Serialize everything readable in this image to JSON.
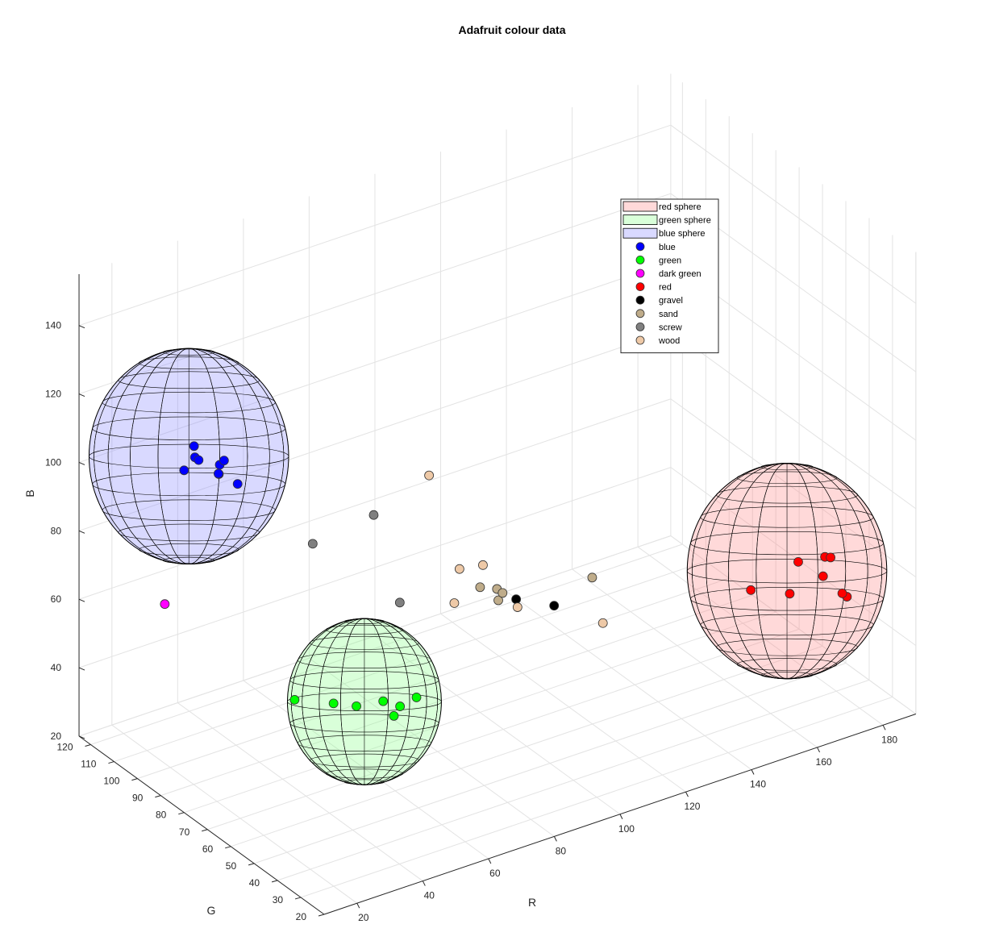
{
  "chart_data": {
    "type": "scatter",
    "subtype": "3d-scatter-with-spheres",
    "title": "Adafruit colour data",
    "xlabel": "R",
    "ylabel": "G",
    "zlabel": "B",
    "xlim": [
      10,
      190
    ],
    "ylim": [
      20,
      125
    ],
    "zlim": [
      20,
      155
    ],
    "xticks": [
      20,
      40,
      60,
      80,
      100,
      120,
      140,
      160,
      180
    ],
    "yticks": [
      20,
      30,
      40,
      50,
      60,
      70,
      80,
      90,
      100,
      110,
      120
    ],
    "zticks": [
      20,
      40,
      60,
      80,
      100,
      120,
      140
    ],
    "grid": true,
    "legend_position": "top-right",
    "spheres": [
      {
        "name": "red sphere",
        "center": [
          165,
          40,
          60
        ],
        "radius": 35,
        "color": "#ff8080",
        "alpha": 0.3
      },
      {
        "name": "green sphere",
        "center": [
          40,
          45,
          60
        ],
        "radius": 27,
        "color": "#80ff80",
        "alpha": 0.3
      },
      {
        "name": "blue sphere",
        "center": [
          15,
          85,
          120
        ],
        "radius": 35,
        "color": "#8080ff",
        "alpha": 0.3
      }
    ],
    "series": [
      {
        "name": "blue",
        "color": "#0000ff",
        "points": [
          [
            10,
            80,
            120
          ],
          [
            14,
            81,
            122
          ],
          [
            18,
            87,
            121
          ],
          [
            13,
            78,
            123
          ],
          [
            18,
            76,
            121
          ],
          [
            25,
            84,
            116
          ],
          [
            22,
            82,
            114
          ],
          [
            24,
            85,
            112
          ],
          [
            27,
            81,
            110
          ]
        ]
      },
      {
        "name": "green",
        "color": "#00ff00",
        "points": [
          [
            28,
            58,
            58
          ],
          [
            37,
            54,
            56
          ],
          [
            39,
            47,
            58
          ],
          [
            44,
            38,
            58
          ],
          [
            45,
            44,
            59
          ],
          [
            48,
            41,
            58
          ],
          [
            53,
            41,
            59
          ]
        ]
      },
      {
        "name": "dark green",
        "color": "#ff00ff",
        "points": [
          [
            2,
            77,
            85
          ]
        ]
      },
      {
        "name": "red",
        "color": "#ff0000",
        "points": [
          [
            154,
            40,
            58
          ],
          [
            163,
            36,
            56
          ],
          [
            167,
            38,
            63
          ],
          [
            171,
            33,
            60
          ],
          [
            174,
            27,
            56
          ],
          [
            174,
            29,
            56
          ],
          [
            173,
            35,
            64
          ],
          [
            174,
            34,
            64
          ]
        ]
      },
      {
        "name": "gravel",
        "color": "#000000",
        "points": [
          [
            97,
            44,
            70
          ],
          [
            89,
            49,
            72
          ]
        ]
      },
      {
        "name": "sand",
        "color": "#bfac8a",
        "points": [
          [
            83,
            56,
            74
          ],
          [
            85,
            51,
            72
          ],
          [
            86,
            53,
            74
          ],
          [
            87,
            52,
            73
          ],
          [
            110,
            46,
            73
          ]
        ]
      },
      {
        "name": "screw",
        "color": "#808080",
        "points": [
          [
            47,
            77,
            88
          ],
          [
            62,
            72,
            94
          ],
          [
            60,
            58,
            76
          ]
        ]
      },
      {
        "name": "wood",
        "color": "#eec9a7",
        "points": [
          [
            76,
            68,
            103
          ],
          [
            81,
            62,
            77
          ],
          [
            86,
            59,
            78
          ],
          [
            78,
            60,
            69
          ],
          [
            88,
            47,
            71
          ],
          [
            109,
            40,
            63
          ]
        ]
      }
    ]
  }
}
